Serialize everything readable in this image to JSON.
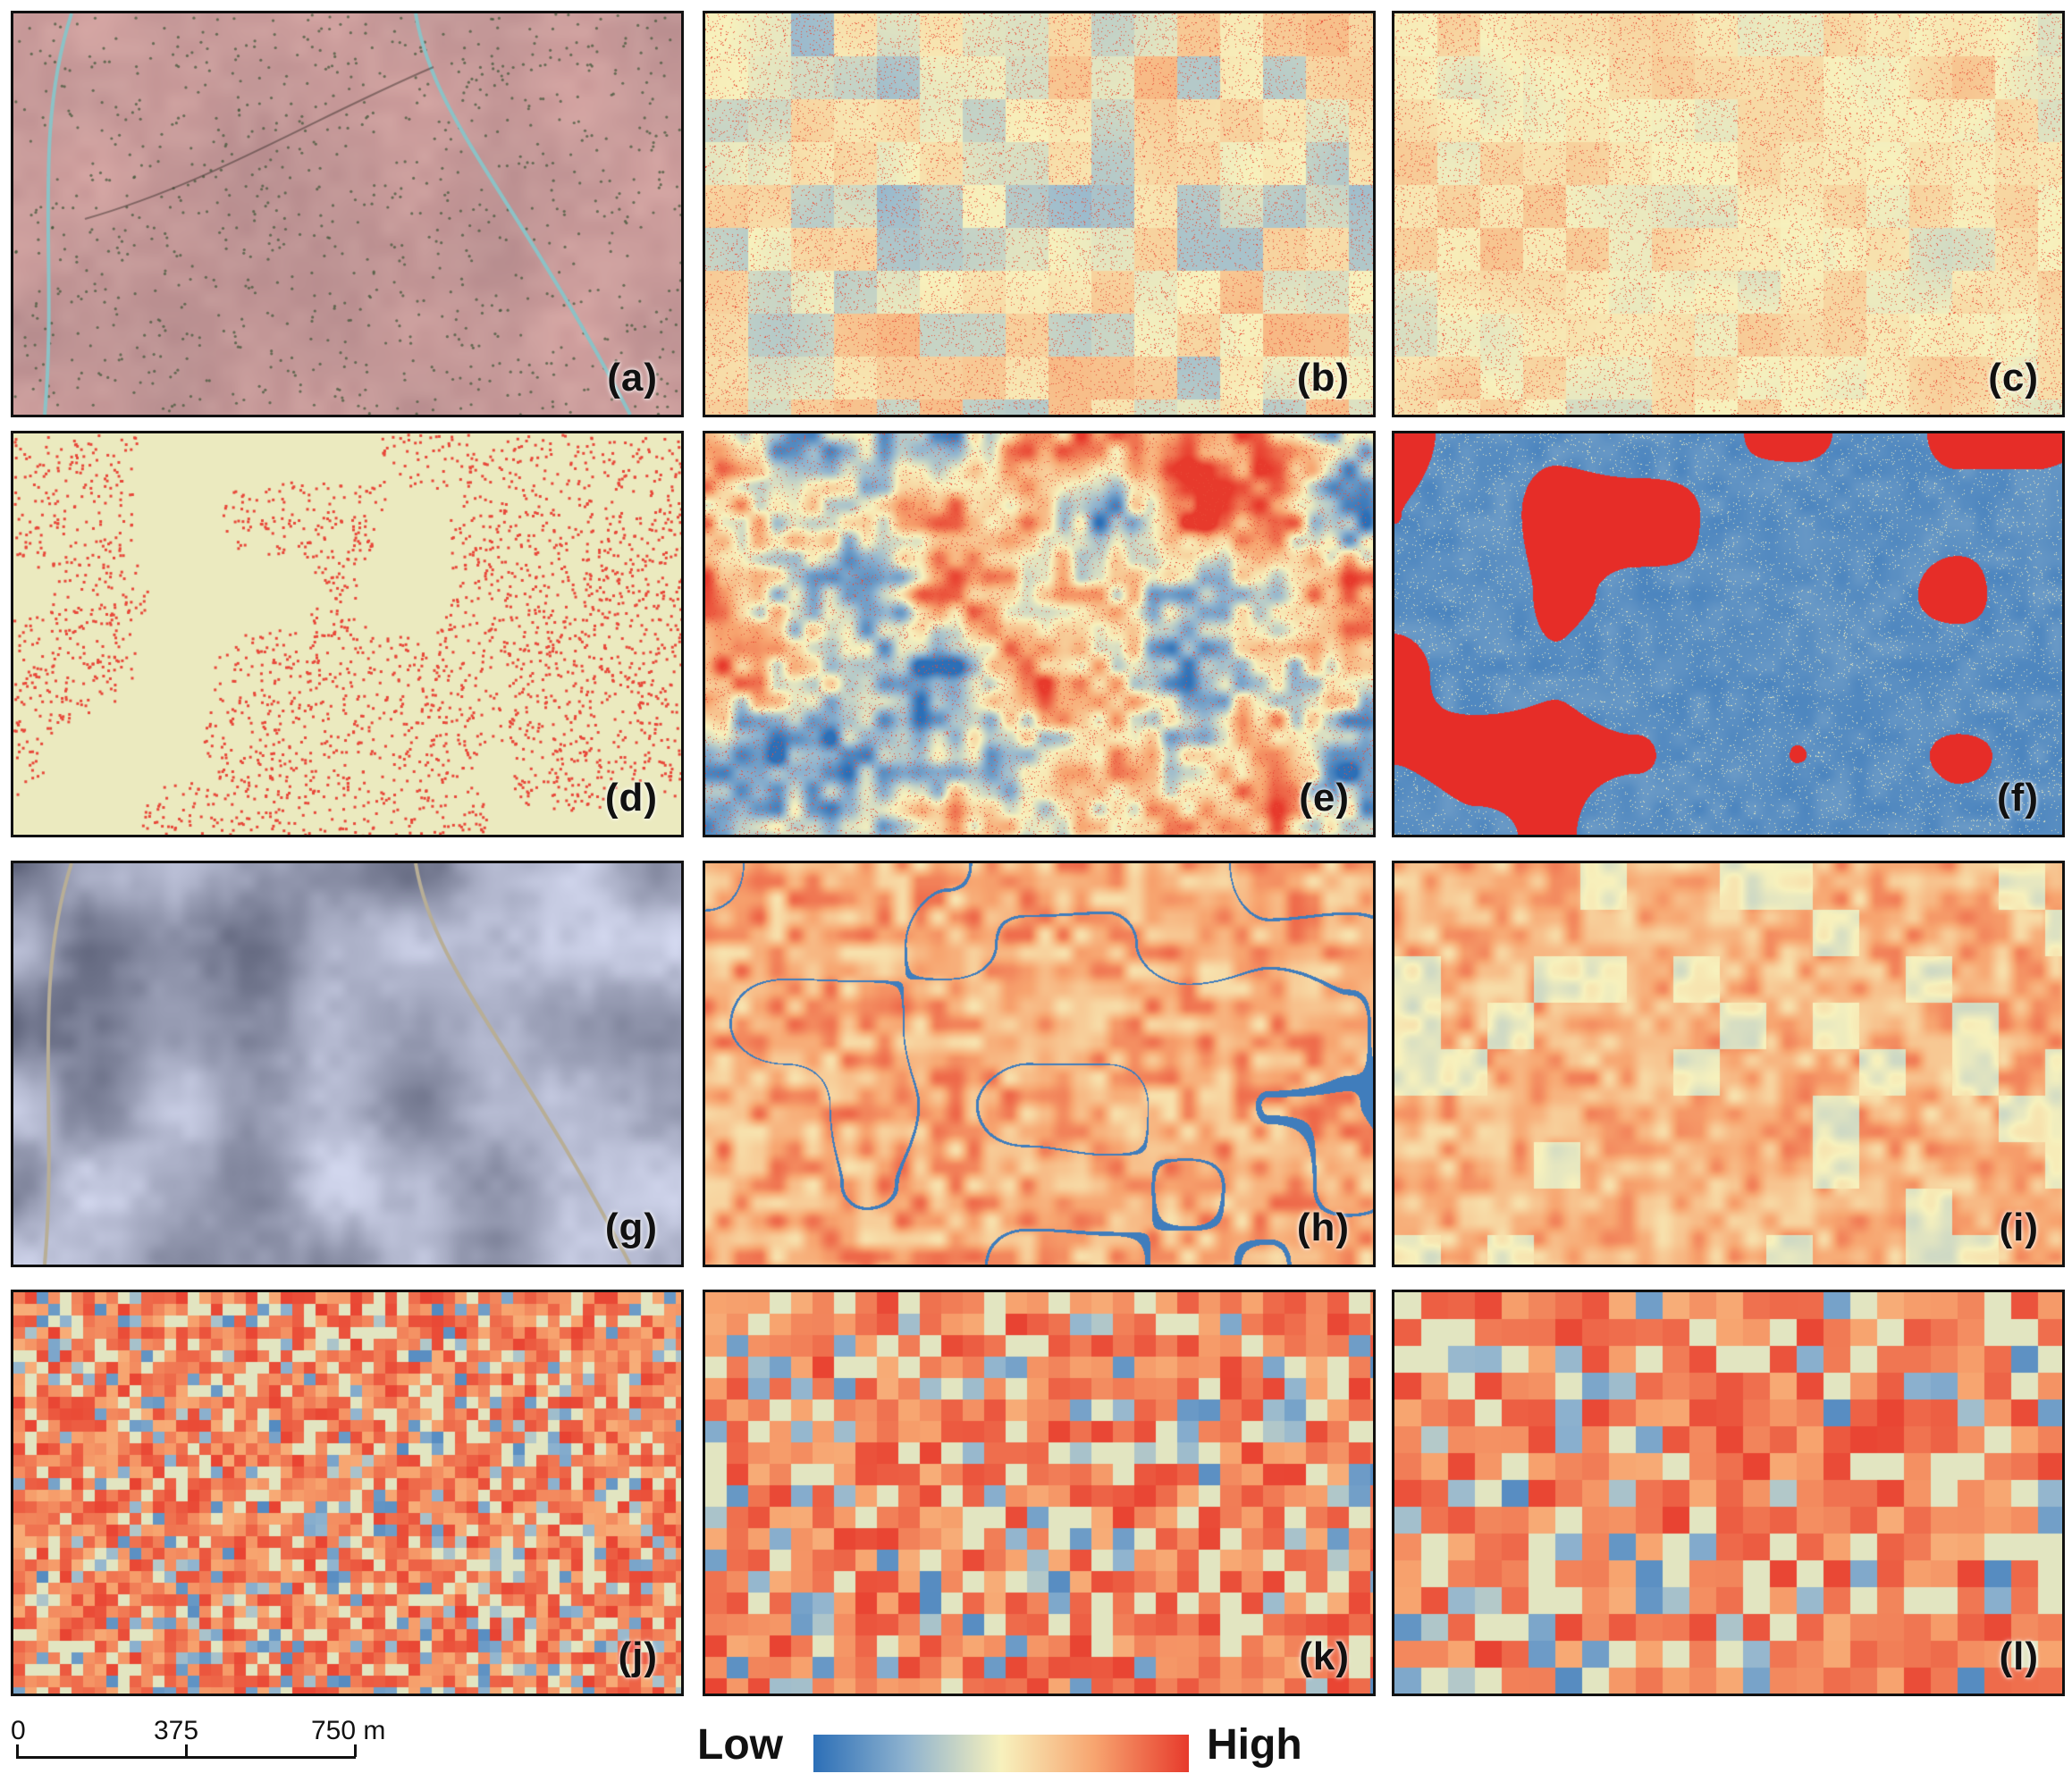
{
  "panels": [
    {
      "id": "a",
      "label": "(a)",
      "style": "rgb-pink"
    },
    {
      "id": "b",
      "label": "(b)",
      "style": "speckle-blocks"
    },
    {
      "id": "c",
      "label": "(c)",
      "style": "speckle-pale"
    },
    {
      "id": "d",
      "label": "(d)",
      "style": "dots-on-yellow"
    },
    {
      "id": "e",
      "label": "(e)",
      "style": "mixed-red"
    },
    {
      "id": "f",
      "label": "(f)",
      "style": "blue-red-blobs"
    },
    {
      "id": "g",
      "label": "(g)",
      "style": "rgb-gray"
    },
    {
      "id": "h",
      "label": "(h)",
      "style": "orange-streaks"
    },
    {
      "id": "i",
      "label": "(i)",
      "style": "orange-blue-blocks"
    },
    {
      "id": "j",
      "label": "(j)",
      "style": "fine-grid"
    },
    {
      "id": "k",
      "label": "(k)",
      "style": "medium-grid"
    },
    {
      "id": "l",
      "label": "(l)",
      "style": "coarse-grid"
    }
  ],
  "scale_bar": {
    "ticks": [
      "0",
      "375",
      "750 m"
    ]
  },
  "legend": {
    "low_label": "Low",
    "high_label": "High",
    "colors": [
      "#2c6fb7",
      "#8fb3cf",
      "#f7f1bd",
      "#f7a46f",
      "#e73a2c"
    ]
  }
}
